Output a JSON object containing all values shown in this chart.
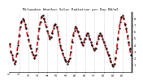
{
  "title": "Milwaukee Weather Solar Radiation per Day KW/m2",
  "bg_color": "#ffffff",
  "line_color": "#cc0000",
  "grid_color": "#999999",
  "ylim": [
    0,
    9.0
  ],
  "values": [
    4.2,
    3.0,
    2.5,
    1.8,
    1.2,
    1.5,
    2.8,
    4.0,
    5.5,
    6.8,
    7.5,
    8.0,
    7.8,
    7.2,
    6.5,
    5.5,
    4.8,
    4.0,
    3.5,
    3.0,
    2.5,
    2.0,
    2.5,
    3.5,
    5.0,
    6.5,
    7.5,
    8.2,
    8.5,
    8.0,
    7.5,
    6.8,
    6.2,
    5.5,
    5.0,
    5.2,
    5.8,
    6.5,
    7.0,
    7.2,
    6.8,
    6.0,
    5.0,
    4.0,
    3.2,
    2.8,
    2.2,
    1.8,
    1.5,
    1.2,
    1.5,
    2.0,
    3.0,
    4.5,
    5.5,
    6.2,
    6.8,
    6.5,
    6.0,
    5.5,
    5.0,
    4.5,
    4.0,
    4.5,
    5.0,
    5.5,
    5.8,
    5.5,
    5.0,
    4.5,
    4.0,
    3.5,
    3.2,
    3.5,
    4.2,
    5.0,
    5.5,
    5.8,
    5.5,
    5.0,
    4.5,
    4.0,
    3.5,
    3.0,
    2.5,
    2.0,
    1.5,
    1.0,
    0.8,
    1.2,
    2.0,
    3.5,
    5.0,
    6.5,
    7.5,
    8.2,
    8.5,
    8.0,
    7.2,
    6.5,
    5.5,
    4.5,
    3.5,
    2.5
  ],
  "yticks": [
    1,
    2,
    3,
    4,
    5,
    6,
    7,
    8
  ],
  "num_gridlines": 13
}
